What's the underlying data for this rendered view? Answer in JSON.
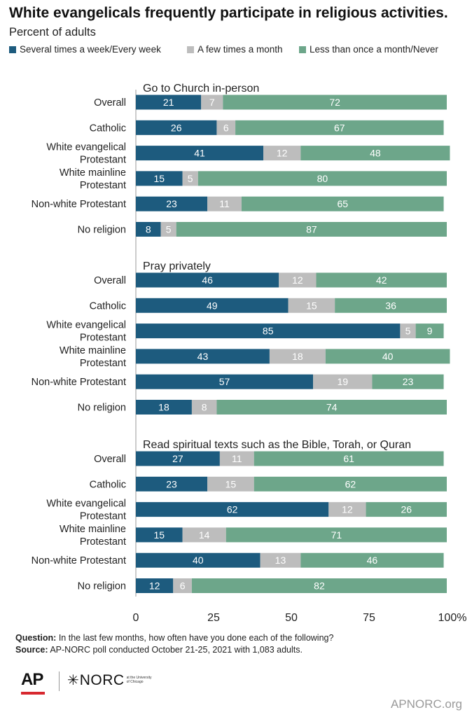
{
  "title": "White evangelicals frequently participate in religious activities.",
  "subtitle": "Percent of adults",
  "colors": {
    "series1": "#1d5b7e",
    "series2": "#bdbdbd",
    "series3": "#6da68a",
    "grid": "#999999"
  },
  "legend": [
    {
      "label": "Several times a week/Every week",
      "color": "#1d5b7e"
    },
    {
      "label": "A few times a month",
      "color": "#bdbdbd"
    },
    {
      "label": "Less than once a month/Never",
      "color": "#6da68a"
    }
  ],
  "chart_data": {
    "type": "bar",
    "orientation": "horizontal",
    "stacked": true,
    "xlim": [
      0,
      100
    ],
    "x_ticks": [
      "0",
      "25",
      "50",
      "75",
      "100%"
    ],
    "series_names": [
      "Several times a week/Every week",
      "A few times a month",
      "Less than once a month/Never"
    ],
    "groups": [
      {
        "heading": "Go to Church in-person",
        "rows": [
          {
            "label": [
              "Overall"
            ],
            "values": [
              21,
              7,
              72
            ]
          },
          {
            "label": [
              "Catholic"
            ],
            "values": [
              26,
              6,
              67
            ]
          },
          {
            "label": [
              "White evangelical",
              "Protestant"
            ],
            "values": [
              41,
              12,
              48
            ]
          },
          {
            "label": [
              "White mainline",
              "Protestant"
            ],
            "values": [
              15,
              5,
              80
            ]
          },
          {
            "label": [
              "Non-white Protestant"
            ],
            "values": [
              23,
              11,
              65
            ]
          },
          {
            "label": [
              "No religion"
            ],
            "values": [
              8,
              5,
              87
            ]
          }
        ]
      },
      {
        "heading": "Pray privately",
        "rows": [
          {
            "label": [
              "Overall"
            ],
            "values": [
              46,
              12,
              42
            ]
          },
          {
            "label": [
              "Catholic"
            ],
            "values": [
              49,
              15,
              36
            ]
          },
          {
            "label": [
              "White evangelical",
              "Protestant"
            ],
            "values": [
              85,
              5,
              9
            ]
          },
          {
            "label": [
              "White mainline",
              "Protestant"
            ],
            "values": [
              43,
              18,
              40
            ]
          },
          {
            "label": [
              "Non-white Protestant"
            ],
            "values": [
              57,
              19,
              23
            ]
          },
          {
            "label": [
              "No religion"
            ],
            "values": [
              18,
              8,
              74
            ]
          }
        ]
      },
      {
        "heading": "Read spiritual texts such as the Bible, Torah, or Quran",
        "rows": [
          {
            "label": [
              "Overall"
            ],
            "values": [
              27,
              11,
              61
            ]
          },
          {
            "label": [
              "Catholic"
            ],
            "values": [
              23,
              15,
              62
            ]
          },
          {
            "label": [
              "White evangelical",
              "Protestant"
            ],
            "values": [
              62,
              12,
              26
            ]
          },
          {
            "label": [
              "White mainline",
              "Protestant"
            ],
            "values": [
              15,
              14,
              71
            ]
          },
          {
            "label": [
              "Non-white Protestant"
            ],
            "values": [
              40,
              13,
              46
            ]
          },
          {
            "label": [
              "No religion"
            ],
            "values": [
              12,
              6,
              82
            ]
          }
        ]
      }
    ]
  },
  "footnotes": {
    "question_label": "Question:",
    "question_text": "In the last few months, how often have you done each of the following?",
    "source_label": "Source:",
    "source_text": "AP-NORC poll conducted October 21-25, 2021 with 1,083 adults."
  },
  "logos": {
    "ap": "AP",
    "norc": "NORC",
    "norc_small": "at the University of Chicago",
    "star_icon": "norc-star-icon"
  },
  "site": "APNORC.org"
}
